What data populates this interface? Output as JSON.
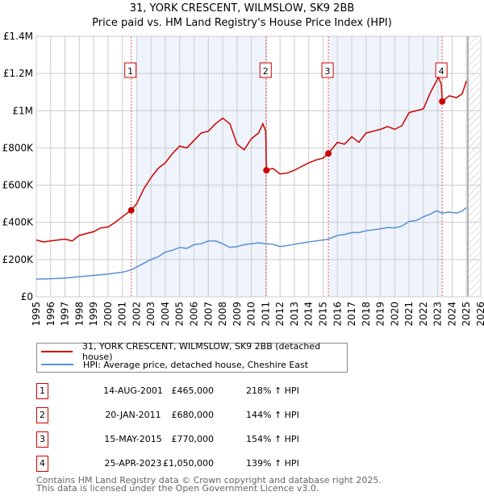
{
  "chart_data": {
    "type": "line",
    "title": "31, YORK CRESCENT, WILMSLOW, SK9 2BB",
    "subtitle": "Price paid vs. HM Land Registry's House Price Index (HPI)",
    "xlim": [
      1995,
      2026
    ],
    "ylim": [
      0,
      1400000
    ],
    "y_ticks": [
      0,
      200000,
      400000,
      600000,
      800000,
      1000000,
      1200000,
      1400000
    ],
    "y_tick_labels": [
      "£0",
      "£200K",
      "£400K",
      "£600K",
      "£800K",
      "£1M",
      "£1.2M",
      "£1.4M"
    ],
    "x_ticks": [
      "1995",
      "1996",
      "1997",
      "1998",
      "1999",
      "2000",
      "2001",
      "2002",
      "2003",
      "2004",
      "2005",
      "2006",
      "2007",
      "2008",
      "2009",
      "2010",
      "2011",
      "2012",
      "2013",
      "2014",
      "2015",
      "2016",
      "2017",
      "2018",
      "2019",
      "2020",
      "2021",
      "2022",
      "2023",
      "2024",
      "2025",
      "2026"
    ],
    "grid": true,
    "shaded_ranges": [
      [
        2002.0,
        2011.05
      ],
      [
        2015.37,
        2023.31
      ]
    ],
    "future_hatch_from": 2025.1,
    "series": [
      {
        "name": "31, YORK CRESCENT, WILMSLOW, SK9 2BB (detached house)",
        "color": "#cc0000",
        "x": [
          1995,
          1995.5,
          1996,
          1997,
          1997.5,
          1998,
          1999,
          1999.5,
          2000,
          2000.5,
          2001,
          2001.62,
          2002,
          2002.5,
          2003,
          2003.5,
          2004,
          2004.5,
          2005,
          2005.5,
          2006,
          2006.5,
          2007,
          2007.5,
          2008,
          2008.5,
          2009,
          2009.5,
          2010,
          2010.5,
          2010.8,
          2011.0,
          2011.05,
          2011.5,
          2012,
          2012.5,
          2013,
          2013.5,
          2014,
          2014.5,
          2015,
          2015.37,
          2016,
          2016.5,
          2017,
          2017.5,
          2018,
          2018.5,
          2019,
          2019.5,
          2020,
          2020.5,
          2021,
          2021.5,
          2022,
          2022.5,
          2023.05,
          2023.25,
          2023.31,
          2023.8,
          2024.3,
          2024.7,
          2025.0
        ],
        "y": [
          305000,
          295000,
          300000,
          310000,
          300000,
          330000,
          350000,
          370000,
          375000,
          400000,
          430000,
          465000,
          500000,
          580000,
          640000,
          690000,
          720000,
          770000,
          810000,
          800000,
          840000,
          880000,
          890000,
          930000,
          960000,
          930000,
          820000,
          790000,
          850000,
          880000,
          930000,
          890000,
          680000,
          690000,
          660000,
          665000,
          680000,
          700000,
          720000,
          735000,
          745000,
          770000,
          830000,
          820000,
          860000,
          830000,
          880000,
          890000,
          900000,
          915000,
          900000,
          920000,
          990000,
          1000000,
          1010000,
          1100000,
          1180000,
          1140000,
          1050000,
          1080000,
          1070000,
          1090000,
          1160000
        ]
      },
      {
        "name": "HPI: Average price, detached house, Cheshire East",
        "color": "#5b8fd4",
        "x": [
          1995,
          1996,
          1997,
          1998,
          1999,
          2000,
          2001,
          2001.62,
          2002,
          2002.5,
          2003,
          2003.5,
          2004,
          2004.5,
          2005,
          2005.5,
          2006,
          2006.5,
          2007,
          2007.5,
          2008,
          2008.5,
          2009,
          2009.5,
          2010,
          2010.5,
          2011,
          2011.5,
          2012,
          2012.5,
          2013,
          2014,
          2015,
          2015.37,
          2016,
          2016.5,
          2017,
          2017.5,
          2018,
          2018.5,
          2019,
          2019.5,
          2020,
          2020.5,
          2021,
          2021.5,
          2022,
          2022.5,
          2022.9,
          2023.31,
          2023.8,
          2024.3,
          2024.7,
          2025.0
        ],
        "y": [
          95000,
          97000,
          100000,
          108000,
          115000,
          122000,
          132000,
          145000,
          160000,
          180000,
          200000,
          215000,
          240000,
          250000,
          265000,
          260000,
          280000,
          285000,
          300000,
          300000,
          285000,
          265000,
          270000,
          280000,
          285000,
          290000,
          285000,
          282000,
          270000,
          275000,
          282000,
          295000,
          305000,
          310000,
          330000,
          335000,
          345000,
          345000,
          355000,
          360000,
          365000,
          372000,
          370000,
          380000,
          405000,
          410000,
          430000,
          445000,
          462000,
          450000,
          455000,
          450000,
          460000,
          480000
        ]
      }
    ],
    "sales": [
      {
        "label": "1",
        "x": 2001.62,
        "y": 465000,
        "date": "14-AUG-2001",
        "price": "£465,000",
        "hpi": "218% ↑ HPI"
      },
      {
        "label": "2",
        "x": 2011.05,
        "y": 680000,
        "date": "20-JAN-2011",
        "price": "£680,000",
        "hpi": "144% ↑ HPI"
      },
      {
        "label": "3",
        "x": 2015.37,
        "y": 770000,
        "date": "15-MAY-2015",
        "price": "£770,000",
        "hpi": "154% ↑ HPI"
      },
      {
        "label": "4",
        "x": 2023.31,
        "y": 1050000,
        "date": "25-APR-2023",
        "price": "£1,050,000",
        "hpi": "139% ↑ HPI"
      }
    ]
  },
  "footer": {
    "line1": "Contains HM Land Registry data © Crown copyright and database right 2025.",
    "line2": "This data is licensed under the Open Government Licence v3.0."
  }
}
